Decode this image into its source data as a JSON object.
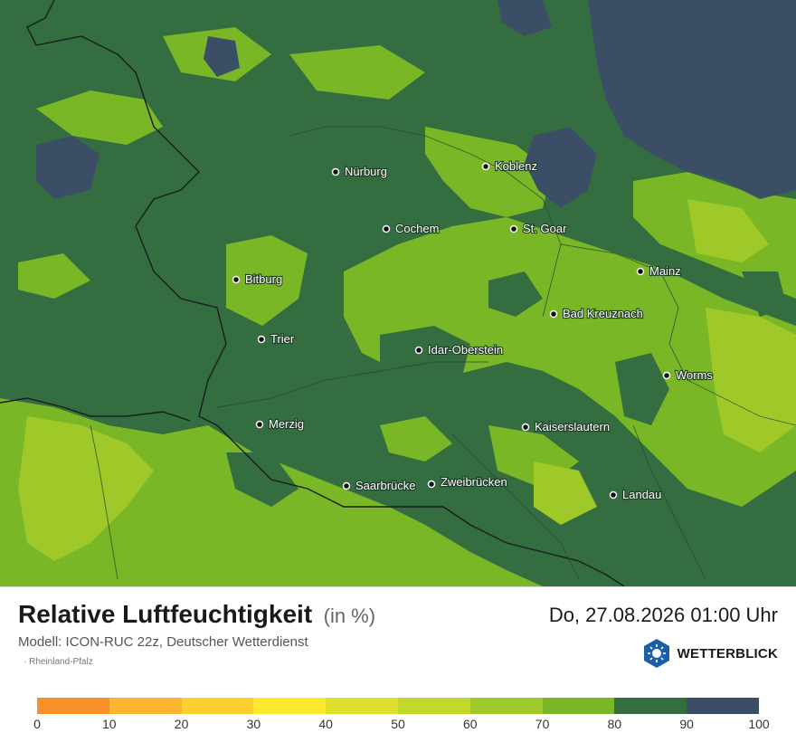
{
  "title": "Relative Luftfeuchtigkeit",
  "unit": "(in %)",
  "datetime": "Do, 27.08.2026 01:00 Uhr",
  "model": "Modell: ICON-RUC 22z, Deutscher Wetterdienst",
  "region": "· Rheinland-Pfalz",
  "brand": {
    "name": "WETTERBLICK",
    "icon": "weather-sun-icon"
  },
  "cities": [
    {
      "name": "Nürburg"
    },
    {
      "name": "Koblenz"
    },
    {
      "name": "Cochem"
    },
    {
      "name": "St. Goar"
    },
    {
      "name": "Mainz"
    },
    {
      "name": "Bitburg"
    },
    {
      "name": "Bad Kreuznach"
    },
    {
      "name": "Trier"
    },
    {
      "name": "Idar-Oberstein"
    },
    {
      "name": "Worms"
    },
    {
      "name": "Merzig"
    },
    {
      "name": "Kaiserslautern"
    },
    {
      "name": "Saarbrücke"
    },
    {
      "name": "Zweibrücken"
    },
    {
      "name": "Landau"
    }
  ],
  "legend": {
    "colors": [
      "#f7922b",
      "#fbb52e",
      "#fdd030",
      "#fdea2e",
      "#dfe02c",
      "#c2d92b",
      "#9fc928",
      "#79b726",
      "#336d40",
      "#3b4e66"
    ],
    "ticks": [
      "0",
      "10",
      "20",
      "30",
      "40",
      "50",
      "60",
      "70",
      "80",
      "90",
      "100"
    ]
  },
  "map_colors": {
    "humid_80_90": "#336d40",
    "humid_70_80": "#79b726",
    "humid_60_70": "#9fc928",
    "humid_90_100": "#3b4e66"
  }
}
